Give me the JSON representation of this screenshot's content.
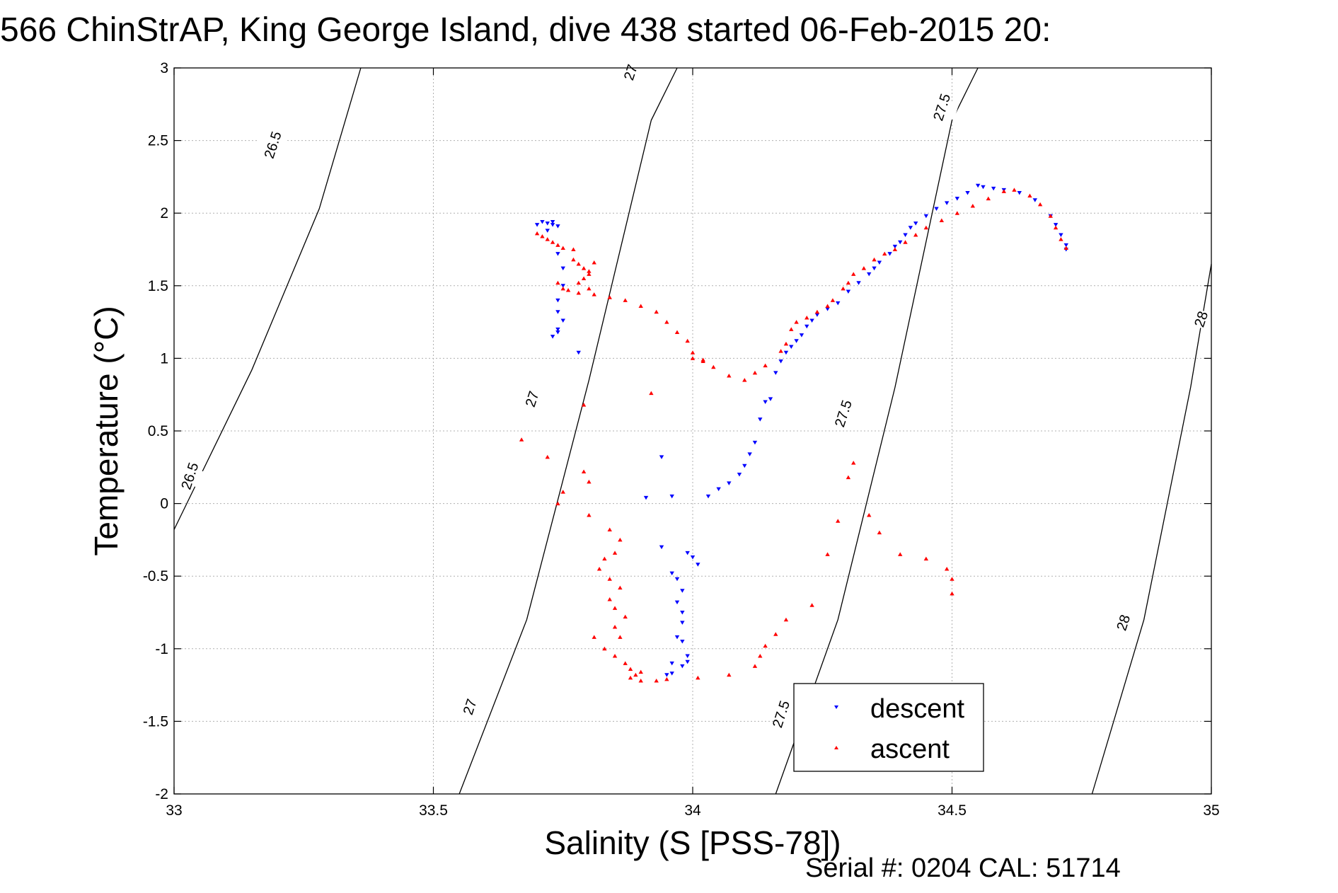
{
  "chart_data": {
    "type": "scatter",
    "title": "566 ChinStrAP, King George Island, dive 438 started 06-Feb-2015 20:",
    "xlabel": "Salinity (S [PSS-78])",
    "ylabel": "Temperature (°C)",
    "xlim": [
      33,
      35
    ],
    "ylim": [
      -2,
      3
    ],
    "xticks": [
      "33",
      "33.5",
      "34",
      "34.5",
      "35"
    ],
    "yticks": [
      "3",
      "2.5",
      "2",
      "1.5",
      "1",
      "0.5",
      "0",
      "-0.5",
      "-1",
      "-1.5",
      "-2"
    ],
    "grid": true,
    "legend_position": "bottom-right",
    "footer": "Serial #: 0204  CAL: 51714",
    "colors": {
      "descent": "#0000ff",
      "ascent": "#ff0000",
      "contour": "#000000",
      "grid": "#b0b0b0"
    },
    "density_contours": [
      {
        "label": "26.5",
        "points": [
          [
            33.0,
            -0.18
          ],
          [
            33.15,
            0.92
          ],
          [
            33.28,
            2.03
          ],
          [
            33.36,
            3.0
          ]
        ],
        "label_positions": [
          [
            33.19,
            2.47
          ],
          [
            33.03,
            0.19
          ]
        ]
      },
      {
        "label": "27",
        "points": [
          [
            33.55,
            -2.0
          ],
          [
            33.68,
            -0.8
          ],
          [
            33.8,
            0.85
          ],
          [
            33.92,
            2.64
          ],
          [
            33.97,
            3.0
          ]
        ],
        "label_positions": [
          [
            33.88,
            2.97
          ],
          [
            33.69,
            0.72
          ],
          [
            33.57,
            -1.4
          ]
        ]
      },
      {
        "label": "27.5",
        "points": [
          [
            34.16,
            -2.0
          ],
          [
            34.28,
            -0.8
          ],
          [
            34.39,
            0.8
          ],
          [
            34.5,
            2.64
          ],
          [
            34.55,
            3.0
          ]
        ],
        "label_positions": [
          [
            34.48,
            2.73
          ],
          [
            34.29,
            0.62
          ],
          [
            34.17,
            -1.45
          ]
        ]
      },
      {
        "label": "28",
        "points": [
          [
            34.77,
            -2.0
          ],
          [
            34.87,
            -0.8
          ],
          [
            34.96,
            0.8
          ],
          [
            35.0,
            1.65
          ]
        ],
        "label_positions": [
          [
            34.98,
            1.27
          ],
          [
            34.83,
            -0.82
          ]
        ]
      }
    ],
    "series": [
      {
        "name": "descent",
        "marker": "triangle-down",
        "points": [
          [
            33.71,
            1.94
          ],
          [
            33.72,
            1.93
          ],
          [
            33.73,
            1.92
          ],
          [
            33.72,
            1.88
          ],
          [
            33.7,
            1.92
          ],
          [
            33.73,
            1.94
          ],
          [
            33.74,
            1.91
          ],
          [
            33.74,
            1.72
          ],
          [
            33.75,
            1.62
          ],
          [
            33.75,
            1.5
          ],
          [
            33.74,
            1.4
          ],
          [
            33.74,
            1.32
          ],
          [
            33.75,
            1.26
          ],
          [
            33.74,
            1.2
          ],
          [
            33.73,
            1.15
          ],
          [
            33.74,
            1.18
          ],
          [
            33.78,
            1.04
          ],
          [
            33.94,
            0.32
          ],
          [
            33.91,
            0.04
          ],
          [
            33.96,
            0.05
          ],
          [
            33.94,
            -0.3
          ],
          [
            33.99,
            -0.34
          ],
          [
            34.01,
            -0.42
          ],
          [
            34.0,
            -0.37
          ],
          [
            33.97,
            -0.52
          ],
          [
            33.96,
            -0.48
          ],
          [
            33.98,
            -0.6
          ],
          [
            33.97,
            -0.68
          ],
          [
            33.98,
            -0.75
          ],
          [
            33.98,
            -0.82
          ],
          [
            33.97,
            -0.92
          ],
          [
            33.98,
            -0.95
          ],
          [
            33.99,
            -1.05
          ],
          [
            33.96,
            -1.1
          ],
          [
            33.98,
            -1.12
          ],
          [
            33.96,
            -1.17
          ],
          [
            33.95,
            -1.18
          ],
          [
            33.99,
            -1.09
          ],
          [
            34.03,
            0.05
          ],
          [
            34.05,
            0.1
          ],
          [
            34.07,
            0.14
          ],
          [
            34.09,
            0.2
          ],
          [
            34.1,
            0.26
          ],
          [
            34.11,
            0.34
          ],
          [
            34.12,
            0.42
          ],
          [
            34.13,
            0.58
          ],
          [
            34.14,
            0.7
          ],
          [
            34.15,
            0.72
          ],
          [
            34.16,
            0.9
          ],
          [
            34.17,
            0.98
          ],
          [
            34.18,
            1.04
          ],
          [
            34.19,
            1.08
          ],
          [
            34.2,
            1.12
          ],
          [
            34.21,
            1.16
          ],
          [
            34.22,
            1.22
          ],
          [
            34.23,
            1.26
          ],
          [
            34.24,
            1.3
          ],
          [
            34.26,
            1.34
          ],
          [
            34.28,
            1.38
          ],
          [
            34.3,
            1.46
          ],
          [
            34.32,
            1.52
          ],
          [
            34.34,
            1.58
          ],
          [
            34.35,
            1.62
          ],
          [
            34.36,
            1.66
          ],
          [
            34.38,
            1.72
          ],
          [
            34.39,
            1.77
          ],
          [
            34.4,
            1.8
          ],
          [
            34.41,
            1.85
          ],
          [
            34.42,
            1.9
          ],
          [
            34.43,
            1.93
          ],
          [
            34.45,
            1.98
          ],
          [
            34.47,
            2.03
          ],
          [
            34.49,
            2.07
          ],
          [
            34.51,
            2.1
          ],
          [
            34.53,
            2.14
          ],
          [
            34.55,
            2.19
          ],
          [
            34.56,
            2.18
          ],
          [
            34.58,
            2.17
          ],
          [
            34.6,
            2.16
          ],
          [
            34.63,
            2.14
          ],
          [
            34.66,
            2.09
          ],
          [
            34.69,
            1.98
          ],
          [
            34.7,
            1.92
          ],
          [
            34.71,
            1.85
          ],
          [
            34.72,
            1.78
          ],
          [
            34.72,
            1.75
          ]
        ]
      },
      {
        "name": "ascent",
        "marker": "triangle-up",
        "points": [
          [
            33.7,
            1.86
          ],
          [
            33.71,
            1.84
          ],
          [
            33.72,
            1.82
          ],
          [
            33.73,
            1.8
          ],
          [
            33.74,
            1.78
          ],
          [
            33.75,
            1.76
          ],
          [
            33.77,
            1.75
          ],
          [
            33.77,
            1.68
          ],
          [
            33.78,
            1.65
          ],
          [
            33.79,
            1.62
          ],
          [
            33.8,
            1.6
          ],
          [
            33.8,
            1.58
          ],
          [
            33.81,
            1.66
          ],
          [
            33.79,
            1.55
          ],
          [
            33.78,
            1.52
          ],
          [
            33.8,
            1.48
          ],
          [
            33.75,
            1.48
          ],
          [
            33.74,
            1.52
          ],
          [
            33.76,
            1.47
          ],
          [
            33.78,
            1.45
          ],
          [
            33.81,
            1.44
          ],
          [
            33.84,
            1.42
          ],
          [
            33.87,
            1.4
          ],
          [
            33.9,
            1.36
          ],
          [
            33.93,
            1.32
          ],
          [
            33.95,
            1.25
          ],
          [
            33.97,
            1.18
          ],
          [
            33.99,
            1.12
          ],
          [
            34.0,
            1.04
          ],
          [
            34.02,
            0.99
          ],
          [
            34.04,
            0.94
          ],
          [
            34.07,
            0.88
          ],
          [
            34.1,
            0.85
          ],
          [
            34.12,
            0.9
          ],
          [
            34.14,
            0.95
          ],
          [
            34.17,
            1.05
          ],
          [
            34.18,
            1.1
          ],
          [
            34.19,
            1.2
          ],
          [
            34.2,
            1.25
          ],
          [
            34.22,
            1.28
          ],
          [
            34.24,
            1.32
          ],
          [
            34.26,
            1.36
          ],
          [
            34.27,
            1.4
          ],
          [
            34.29,
            1.48
          ],
          [
            34.3,
            1.52
          ],
          [
            34.31,
            1.58
          ],
          [
            34.33,
            1.62
          ],
          [
            34.35,
            1.68
          ],
          [
            34.37,
            1.72
          ],
          [
            34.39,
            1.75
          ],
          [
            34.41,
            1.8
          ],
          [
            34.43,
            1.85
          ],
          [
            34.45,
            1.9
          ],
          [
            34.48,
            1.95
          ],
          [
            34.51,
            2.0
          ],
          [
            34.54,
            2.05
          ],
          [
            34.57,
            2.1
          ],
          [
            34.6,
            2.15
          ],
          [
            34.62,
            2.16
          ],
          [
            34.65,
            2.12
          ],
          [
            34.67,
            2.06
          ],
          [
            34.69,
            1.98
          ],
          [
            34.7,
            1.9
          ],
          [
            34.71,
            1.82
          ],
          [
            34.72,
            1.76
          ],
          [
            33.79,
            0.68
          ],
          [
            33.92,
            0.76
          ],
          [
            33.67,
            0.44
          ],
          [
            33.72,
            0.32
          ],
          [
            33.79,
            0.22
          ],
          [
            33.8,
            0.15
          ],
          [
            33.75,
            0.08
          ],
          [
            33.74,
            0.0
          ],
          [
            33.8,
            -0.08
          ],
          [
            33.84,
            -0.18
          ],
          [
            33.86,
            -0.25
          ],
          [
            33.85,
            -0.34
          ],
          [
            33.83,
            -0.38
          ],
          [
            33.82,
            -0.45
          ],
          [
            33.84,
            -0.52
          ],
          [
            33.86,
            -0.58
          ],
          [
            33.84,
            -0.66
          ],
          [
            33.85,
            -0.72
          ],
          [
            33.87,
            -0.78
          ],
          [
            33.85,
            -0.85
          ],
          [
            33.86,
            -0.92
          ],
          [
            33.81,
            -0.92
          ],
          [
            33.83,
            -1.0
          ],
          [
            33.85,
            -1.05
          ],
          [
            33.87,
            -1.1
          ],
          [
            33.88,
            -1.14
          ],
          [
            33.9,
            -1.16
          ],
          [
            33.89,
            -1.18
          ],
          [
            33.88,
            -1.2
          ],
          [
            33.9,
            -1.22
          ],
          [
            33.93,
            -1.22
          ],
          [
            33.95,
            -1.21
          ],
          [
            34.01,
            -1.2
          ],
          [
            34.07,
            -1.18
          ],
          [
            34.12,
            -1.12
          ],
          [
            34.13,
            -1.05
          ],
          [
            34.14,
            -0.98
          ],
          [
            34.16,
            -0.9
          ],
          [
            34.18,
            -0.8
          ],
          [
            34.23,
            -0.7
          ],
          [
            34.26,
            -0.35
          ],
          [
            34.28,
            -0.12
          ],
          [
            34.3,
            0.18
          ],
          [
            34.31,
            0.28
          ],
          [
            34.34,
            -0.08
          ],
          [
            34.36,
            -0.2
          ],
          [
            34.4,
            -0.35
          ],
          [
            34.45,
            -0.38
          ],
          [
            34.49,
            -0.45
          ],
          [
            34.5,
            -0.52
          ],
          [
            34.5,
            -0.62
          ],
          [
            34.0,
            1.0
          ],
          [
            34.02,
            0.98
          ]
        ]
      }
    ]
  }
}
